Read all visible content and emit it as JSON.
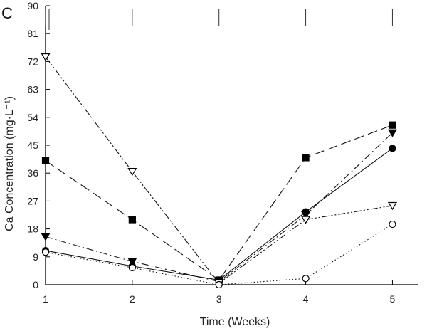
{
  "chart_data": {
    "type": "line",
    "panel_label": "C",
    "xlabel": "Time (Weeks)",
    "ylabel": "Ca Concentration (mg·L⁻¹)",
    "x": [
      1,
      2,
      3,
      4,
      5
    ],
    "xlim": [
      1,
      5.3
    ],
    "ylim": [
      0,
      90
    ],
    "xticks": [
      1,
      2,
      3,
      4,
      5
    ],
    "yticks": [
      0,
      9,
      18,
      27,
      36,
      45,
      54,
      63,
      72,
      81,
      90
    ],
    "series": [
      {
        "name": "filled circle",
        "marker": "circle-filled",
        "dash": "solid",
        "values": [
          11,
          6,
          1.5,
          23.5,
          44
        ]
      },
      {
        "name": "filled square",
        "marker": "square-filled",
        "dash": "long-dash",
        "values": [
          40,
          21,
          1.5,
          41,
          51.5
        ]
      },
      {
        "name": "filled triangle down",
        "marker": "triangle-down-filled",
        "dash": "dash-dot",
        "values": [
          15.5,
          7.5,
          1,
          22.5,
          49
        ]
      },
      {
        "name": "open triangle down",
        "marker": "triangle-down-open",
        "dash": "dash-dot-dot",
        "values": [
          73.5,
          36.5,
          0.5,
          21,
          25.5
        ]
      },
      {
        "name": "open circle",
        "marker": "circle-open",
        "dash": "dotted",
        "values": [
          10.5,
          5.5,
          0,
          2,
          19.5
        ]
      }
    ]
  }
}
